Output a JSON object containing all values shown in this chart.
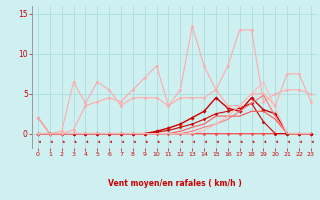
{
  "title": "",
  "xlabel": "Vent moyen/en rafales ( km/h )",
  "ylabel": "",
  "bg_color": "#cff0f0",
  "grid_color": "#aadddd",
  "x_values": [
    0,
    1,
    2,
    3,
    4,
    5,
    6,
    7,
    8,
    9,
    10,
    11,
    12,
    13,
    14,
    15,
    16,
    17,
    18,
    19,
    20,
    21,
    22,
    23
  ],
  "lines": [
    {
      "y": [
        2,
        0,
        0,
        0,
        0,
        0,
        0,
        0,
        0,
        0,
        0,
        0,
        0,
        0,
        0,
        0,
        0,
        0,
        0,
        0,
        0,
        0,
        0,
        0
      ],
      "color": "#ff4444",
      "lw": 0.8,
      "marker": "D",
      "ms": 1.5,
      "alpha": 1.0
    },
    {
      "y": [
        0,
        0,
        0,
        0,
        0,
        0,
        0,
        0,
        0,
        0,
        0.2,
        0.4,
        0.8,
        1.2,
        1.8,
        2.5,
        2.8,
        3.2,
        3.8,
        1.5,
        0.0,
        0,
        0,
        0
      ],
      "color": "#cc0000",
      "lw": 0.8,
      "marker": "D",
      "ms": 1.5,
      "alpha": 1.0
    },
    {
      "y": [
        0,
        0,
        0,
        0,
        0,
        0,
        0,
        0,
        0,
        0,
        0.3,
        0.7,
        1.2,
        2.0,
        2.8,
        4.5,
        3.2,
        2.8,
        4.5,
        3.0,
        2.5,
        0,
        0,
        0
      ],
      "color": "#cc0000",
      "lw": 1.0,
      "marker": "D",
      "ms": 1.8,
      "alpha": 1.0
    },
    {
      "y": [
        2,
        0,
        0.3,
        6.5,
        3.8,
        6.5,
        5.5,
        3.5,
        4.5,
        4.5,
        4.5,
        3.5,
        4.5,
        4.5,
        4.5,
        5.5,
        3.5,
        3.5,
        5.0,
        5.0,
        3.5,
        7.5,
        7.5,
        4.0
      ],
      "color": "#ffaaaa",
      "lw": 0.8,
      "marker": "D",
      "ms": 1.5,
      "alpha": 1.0
    },
    {
      "y": [
        0,
        0,
        0,
        0.5,
        3.5,
        4.0,
        4.5,
        4.0,
        5.5,
        7.0,
        8.5,
        3.5,
        5.5,
        13.5,
        8.5,
        5.5,
        8.5,
        13.0,
        13.0,
        4.0,
        5.0,
        5.5,
        5.5,
        5.0
      ],
      "color": "#ffaaaa",
      "lw": 0.8,
      "marker": "D",
      "ms": 1.5,
      "alpha": 1.0
    },
    {
      "y": [
        0,
        0,
        0,
        0,
        0,
        0,
        0,
        0,
        0,
        0,
        0,
        0,
        0.3,
        0.8,
        1.2,
        2.2,
        2.2,
        2.2,
        2.8,
        2.8,
        1.8,
        0,
        0,
        0
      ],
      "color": "#ff5555",
      "lw": 0.8,
      "marker": null,
      "ms": 0,
      "alpha": 1.0
    },
    {
      "y": [
        0,
        0,
        0,
        0,
        0,
        0,
        0,
        0,
        0,
        0,
        0,
        0,
        0,
        0.3,
        0.8,
        1.2,
        1.8,
        2.8,
        3.8,
        4.8,
        2.2,
        0,
        0,
        0
      ],
      "color": "#ff7777",
      "lw": 0.8,
      "marker": null,
      "ms": 0,
      "alpha": 1.0
    },
    {
      "y": [
        0,
        0,
        0,
        0,
        0,
        0,
        0,
        0,
        0,
        0,
        0,
        0,
        0,
        0,
        0.4,
        1.2,
        2.2,
        3.5,
        5.0,
        6.5,
        3.2,
        0,
        0,
        0
      ],
      "color": "#ffbbbb",
      "lw": 0.8,
      "marker": null,
      "ms": 0,
      "alpha": 1.0
    }
  ],
  "ylim": [
    -1.8,
    16
  ],
  "yticks": [
    0,
    5,
    10,
    15
  ],
  "xticks": [
    0,
    1,
    2,
    3,
    4,
    5,
    6,
    7,
    8,
    9,
    10,
    11,
    12,
    13,
    14,
    15,
    16,
    17,
    18,
    19,
    20,
    21,
    22,
    23
  ]
}
